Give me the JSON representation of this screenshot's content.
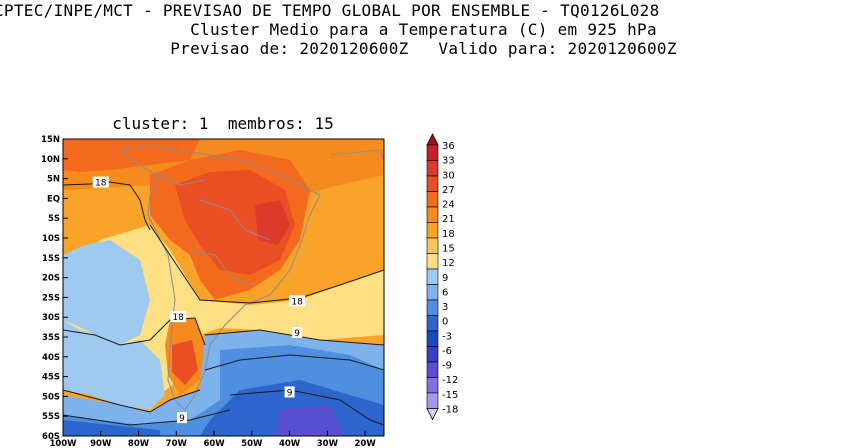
{
  "title": {
    "line1": "CPTEC/INPE/MCT - PREVISAO DE TEMPO GLOBAL POR ENSEMBLE - TQ0126L028",
    "line2": "Cluster Medio para a Temperatura (C) em 925 hPa",
    "line3": "Previsao de: 2020120600Z   Valido para: 2020120600Z"
  },
  "subtitle": "cluster: 1  membros: 15",
  "map": {
    "lat_ticks": [
      "15N",
      "10N",
      "5N",
      "EQ",
      "5S",
      "10S",
      "15S",
      "20S",
      "25S",
      "30S",
      "35S",
      "40S",
      "45S",
      "50S",
      "55S",
      "60S"
    ],
    "lon_ticks": [
      "100W",
      "90W",
      "80W",
      "70W",
      "60W",
      "50W",
      "40W",
      "30W",
      "20W"
    ],
    "contour_labels": [
      {
        "text": "18",
        "lon": -90,
        "lat": 4
      },
      {
        "text": "18",
        "lon": -69.5,
        "lat": -30
      },
      {
        "text": "18",
        "lon": -38,
        "lat": -26
      },
      {
        "text": "9",
        "lon": -38,
        "lat": -34
      },
      {
        "text": "9",
        "lon": -40,
        "lat": -49
      },
      {
        "text": "9",
        "lon": -68.5,
        "lat": -55.5
      }
    ]
  },
  "colorbar": {
    "labels": [
      "36",
      "33",
      "30",
      "27",
      "24",
      "21",
      "18",
      "15",
      "12",
      "9",
      "6",
      "3",
      "0",
      "-3",
      "-6",
      "-9",
      "-12",
      "-15",
      "-18"
    ],
    "colors": [
      "#a50f15",
      "#c8202a",
      "#dc3a2b",
      "#ea4f24",
      "#f36a1e",
      "#f58a1f",
      "#f9a32a",
      "#fcc45c",
      "#fde083",
      "#9ec9f0",
      "#7db2ec",
      "#4f8fe0",
      "#2c66cd",
      "#1f49c2",
      "#3a3ec4",
      "#5a4fd0",
      "#7f70e0",
      "#a49aec",
      "#d4cdf6"
    ]
  }
}
